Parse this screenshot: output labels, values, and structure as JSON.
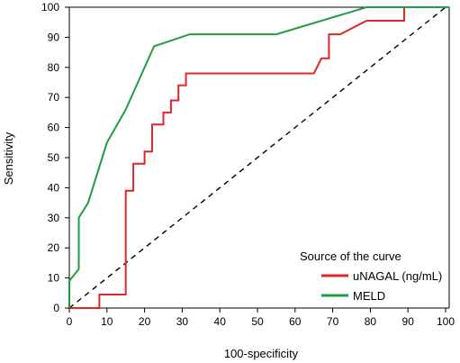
{
  "chart_data": {
    "type": "line",
    "xlabel": "100-specificity",
    "ylabel": "Sensitivity",
    "xlim": [
      0,
      100
    ],
    "ylim": [
      0,
      100
    ],
    "xticks": [
      0,
      10,
      20,
      30,
      40,
      50,
      60,
      70,
      80,
      90,
      100
    ],
    "yticks": [
      0,
      10,
      20,
      30,
      40,
      50,
      60,
      70,
      80,
      90,
      100
    ],
    "grid": false,
    "legend": {
      "title": "Source of the curve",
      "placement": "bottom-right"
    },
    "series": [
      {
        "name": "uNAGAL (ng/mL)",
        "color": "#e0262b",
        "x": [
          0,
          8,
          8,
          15,
          15,
          17,
          17,
          20,
          20,
          22,
          22,
          25,
          25,
          27,
          27,
          29,
          29,
          31,
          31,
          65,
          67,
          69,
          69,
          72,
          79,
          89,
          89,
          101
        ],
        "y": [
          0,
          0,
          4.5,
          4.5,
          39,
          39,
          48,
          48,
          52,
          52,
          61,
          61,
          65,
          65,
          69,
          69,
          74,
          74,
          78,
          78,
          83,
          83,
          91,
          91,
          95.5,
          95.5,
          100,
          100
        ]
      },
      {
        "name": "MELD",
        "color": "#1f9e3f",
        "x": [
          0,
          0,
          2.5,
          2.5,
          5,
          10,
          15,
          22.5,
          32,
          55,
          79,
          101
        ],
        "y": [
          0,
          9,
          13,
          30,
          35,
          55,
          66,
          87,
          91,
          91,
          100,
          100
        ]
      }
    ],
    "reference_line": {
      "x": [
        0,
        100
      ],
      "y": [
        0,
        100
      ],
      "style": "dashed",
      "color": "#000000"
    }
  }
}
